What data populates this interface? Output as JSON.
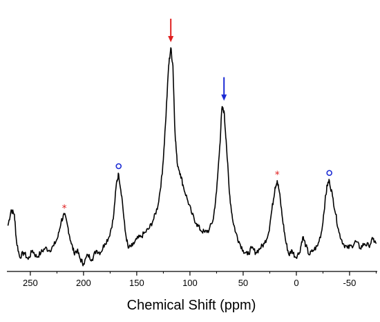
{
  "chart_data": {
    "type": "line",
    "xlabel": "Chemical Shift (ppm)",
    "ylabel": "",
    "title": "",
    "x_axis_reversed": true,
    "xlim": [
      272,
      -76
    ],
    "ylim": [
      0,
      1
    ],
    "grid": false,
    "legend": "none",
    "x_ticks": [
      250,
      200,
      150,
      100,
      50,
      0,
      -50
    ],
    "x_tick_labels": [
      "250",
      "200",
      "150",
      "100",
      "50",
      "0",
      "-50"
    ],
    "series": [
      {
        "color": "#000000",
        "points": [
          [
            271,
            0.17
          ],
          [
            268,
            0.24
          ],
          [
            265,
            0.22
          ],
          [
            263,
            0.1
          ],
          [
            260,
            0.03
          ],
          [
            256,
            0.05
          ],
          [
            252,
            0.02
          ],
          [
            248,
            0.06
          ],
          [
            244,
            0.03
          ],
          [
            240,
            0.05
          ],
          [
            236,
            0.07
          ],
          [
            232,
            0.06
          ],
          [
            228,
            0.08
          ],
          [
            224,
            0.12
          ],
          [
            221,
            0.19
          ],
          [
            218,
            0.22
          ],
          [
            215,
            0.17
          ],
          [
            212,
            0.1
          ],
          [
            209,
            0.05
          ],
          [
            206,
            0.06
          ],
          [
            203,
            0.02
          ],
          [
            200,
            0.0
          ],
          [
            196,
            0.04
          ],
          [
            192,
            0.02
          ],
          [
            188,
            0.06
          ],
          [
            184,
            0.05
          ],
          [
            180,
            0.09
          ],
          [
            176,
            0.12
          ],
          [
            172,
            0.2
          ],
          [
            169,
            0.36
          ],
          [
            167,
            0.4
          ],
          [
            164,
            0.3
          ],
          [
            161,
            0.15
          ],
          [
            158,
            0.07
          ],
          [
            154,
            0.08
          ],
          [
            150,
            0.11
          ],
          [
            146,
            0.12
          ],
          [
            142,
            0.14
          ],
          [
            138,
            0.16
          ],
          [
            134,
            0.2
          ],
          [
            130,
            0.26
          ],
          [
            126,
            0.4
          ],
          [
            123,
            0.62
          ],
          [
            120,
            0.88
          ],
          [
            118,
            0.96
          ],
          [
            116,
            0.88
          ],
          [
            114,
            0.58
          ],
          [
            112,
            0.45
          ],
          [
            109,
            0.4
          ],
          [
            106,
            0.34
          ],
          [
            102,
            0.28
          ],
          [
            98,
            0.22
          ],
          [
            94,
            0.18
          ],
          [
            90,
            0.15
          ],
          [
            86,
            0.14
          ],
          [
            82,
            0.15
          ],
          [
            78,
            0.2
          ],
          [
            75,
            0.32
          ],
          [
            72,
            0.52
          ],
          [
            70,
            0.69
          ],
          [
            68,
            0.68
          ],
          [
            66,
            0.55
          ],
          [
            63,
            0.32
          ],
          [
            60,
            0.2
          ],
          [
            57,
            0.14
          ],
          [
            54,
            0.1
          ],
          [
            50,
            0.06
          ],
          [
            46,
            0.04
          ],
          [
            42,
            0.07
          ],
          [
            38,
            0.05
          ],
          [
            34,
            0.07
          ],
          [
            30,
            0.09
          ],
          [
            26,
            0.14
          ],
          [
            23,
            0.24
          ],
          [
            20,
            0.34
          ],
          [
            18,
            0.37
          ],
          [
            16,
            0.32
          ],
          [
            13,
            0.2
          ],
          [
            10,
            0.1
          ],
          [
            7,
            0.04
          ],
          [
            4,
            0.06
          ],
          [
            1,
            0.03
          ],
          [
            -3,
            0.05
          ],
          [
            -6,
            0.12
          ],
          [
            -9,
            0.08
          ],
          [
            -12,
            0.04
          ],
          [
            -16,
            0.06
          ],
          [
            -20,
            0.08
          ],
          [
            -24,
            0.15
          ],
          [
            -27,
            0.28
          ],
          [
            -29,
            0.35
          ],
          [
            -31,
            0.37
          ],
          [
            -34,
            0.3
          ],
          [
            -37,
            0.22
          ],
          [
            -40,
            0.14
          ],
          [
            -44,
            0.09
          ],
          [
            -48,
            0.07
          ],
          [
            -52,
            0.08
          ],
          [
            -56,
            0.1
          ],
          [
            -60,
            0.07
          ],
          [
            -64,
            0.09
          ],
          [
            -68,
            0.08
          ],
          [
            -72,
            0.11
          ],
          [
            -75,
            0.09
          ]
        ]
      }
    ],
    "annotations": [
      {
        "type": "arrow-down",
        "x": 118,
        "y": 0.96,
        "color": "#e02020"
      },
      {
        "type": "arrow-down",
        "x": 68,
        "y": 0.7,
        "color": "#1a2ad4"
      },
      {
        "type": "asterisk",
        "text": "*",
        "x": 218,
        "y": 0.22,
        "color": "#e02020"
      },
      {
        "type": "asterisk",
        "text": "*",
        "x": 18,
        "y": 0.37,
        "color": "#e02020"
      },
      {
        "type": "circle",
        "x": 167,
        "y": 0.4,
        "color": "#1a2ad4"
      },
      {
        "type": "circle",
        "x": -31,
        "y": 0.37,
        "color": "#1a2ad4"
      }
    ]
  }
}
